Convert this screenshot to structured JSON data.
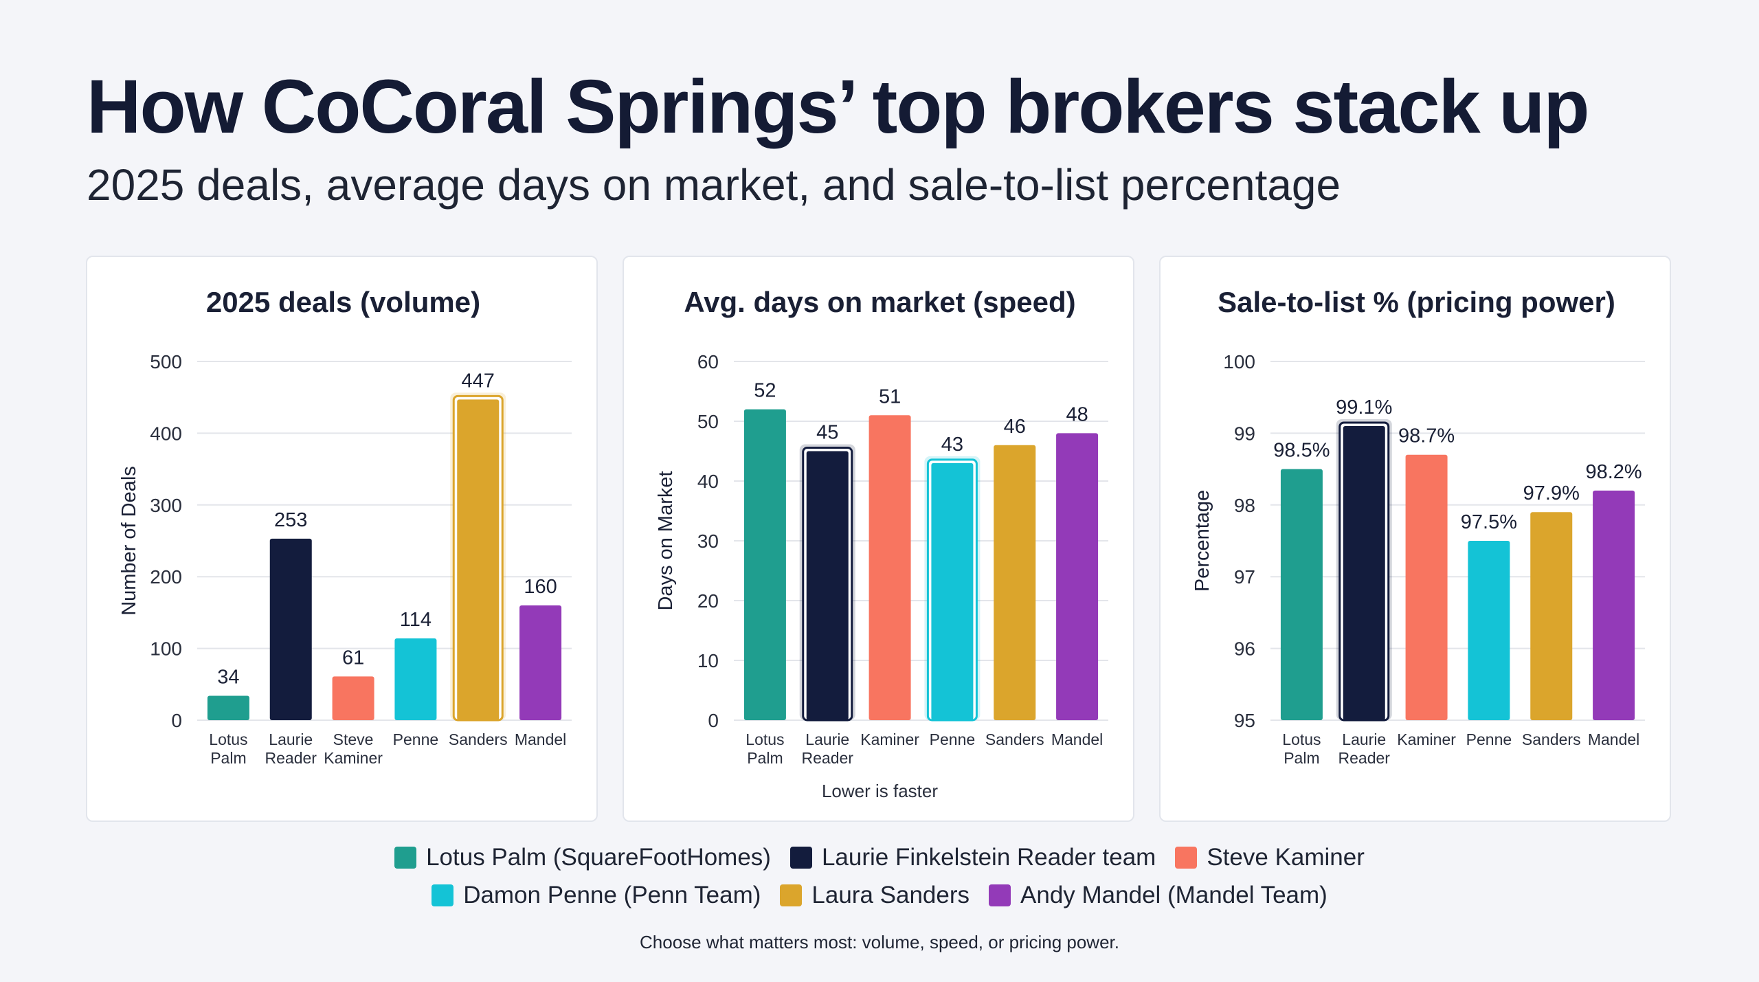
{
  "title": "How CoCoral Springs’ top brokers stack up",
  "subtitle": "2025 deals, average days on market, and sale-to-list percentage",
  "colors": {
    "lotus": "#1f9e8f",
    "reader": "#131c3d",
    "kaminer": "#f87560",
    "penne": "#14c3d6",
    "sanders": "#dba52c",
    "mandel": "#933ab8",
    "gridline": "#e3e5ea"
  },
  "chart_data": [
    {
      "type": "bar",
      "title": "2025 deals (volume)",
      "ylabel": "Number of Deals",
      "xlabel": "",
      "ylim": [
        0,
        500
      ],
      "yticks": [
        0,
        100,
        200,
        300,
        400,
        500
      ],
      "ytick_labels": [
        "0",
        "100",
        "200",
        "300",
        "400",
        "500"
      ],
      "grid": true,
      "categories": [
        [
          "Lotus",
          "Palm"
        ],
        [
          "Laurie",
          "Reader"
        ],
        [
          "Steve",
          "Kaminer"
        ],
        [
          "Penne"
        ],
        [
          "Sanders"
        ],
        [
          "Mandel"
        ]
      ],
      "values": [
        34,
        253,
        61,
        114,
        447,
        160
      ],
      "value_labels": [
        "34",
        "253",
        "61",
        "114",
        "447",
        "160"
      ],
      "color_keys": [
        "lotus",
        "reader",
        "kaminer",
        "penne",
        "sanders",
        "mandel"
      ],
      "highlight": [
        false,
        false,
        false,
        false,
        true,
        false
      ],
      "note": ""
    },
    {
      "type": "bar",
      "title": "Avg. days on market (speed)",
      "ylabel": "Days on Market",
      "xlabel": "",
      "ylim": [
        0,
        60
      ],
      "yticks": [
        0,
        10,
        20,
        30,
        40,
        50,
        60
      ],
      "ytick_labels": [
        "0",
        "10",
        "20",
        "30",
        "40",
        "50",
        "60"
      ],
      "grid": true,
      "categories": [
        [
          "Lotus",
          "Palm"
        ],
        [
          "Laurie",
          "Reader"
        ],
        [
          "Kaminer"
        ],
        [
          "Penne"
        ],
        [
          "Sanders"
        ],
        [
          "Mandel"
        ]
      ],
      "values": [
        52,
        45,
        51,
        43,
        46,
        48
      ],
      "value_labels": [
        "52",
        "45",
        "51",
        "43",
        "46",
        "48"
      ],
      "color_keys": [
        "lotus",
        "reader",
        "kaminer",
        "penne",
        "sanders",
        "mandel"
      ],
      "highlight": [
        false,
        true,
        false,
        true,
        false,
        false
      ],
      "note": "Lower is faster"
    },
    {
      "type": "bar",
      "title": "Sale-to-list % (pricing power)",
      "ylabel": "Percentage",
      "xlabel": "",
      "ylim": [
        95,
        100
      ],
      "yticks": [
        95,
        96,
        97,
        98,
        99,
        100
      ],
      "ytick_labels": [
        "95",
        "96",
        "97",
        "98",
        "99",
        "100"
      ],
      "grid": true,
      "categories": [
        [
          "Lotus",
          "Palm"
        ],
        [
          "Laurie",
          "Reader"
        ],
        [
          "Kaminer"
        ],
        [
          "Penne"
        ],
        [
          "Sanders"
        ],
        [
          "Mandel"
        ]
      ],
      "values": [
        98.5,
        99.1,
        98.7,
        97.5,
        97.9,
        98.2
      ],
      "value_labels": [
        "98.5%",
        "99.1%",
        "98.7%",
        "97.5%",
        "97.9%",
        "98.2%"
      ],
      "color_keys": [
        "lotus",
        "reader",
        "kaminer",
        "penne",
        "sanders",
        "mandel"
      ],
      "highlight": [
        false,
        true,
        false,
        false,
        false,
        false
      ],
      "note": ""
    }
  ],
  "legend": {
    "row1": [
      {
        "label": "Lotus Palm (SquareFootHomes)",
        "color_key": "lotus"
      },
      {
        "label": "Laurie Finkelstein Reader team",
        "color_key": "reader"
      },
      {
        "label": "Steve Kaminer",
        "color_key": "kaminer"
      }
    ],
    "row2": [
      {
        "label": "Damon Penne (Penn Team)",
        "color_key": "penne"
      },
      {
        "label": "Laura Sanders",
        "color_key": "sanders"
      },
      {
        "label": "Andy Mandel (Mandel Team)",
        "color_key": "mandel"
      }
    ]
  },
  "footnote": "Choose what matters most: volume, speed, or pricing power."
}
